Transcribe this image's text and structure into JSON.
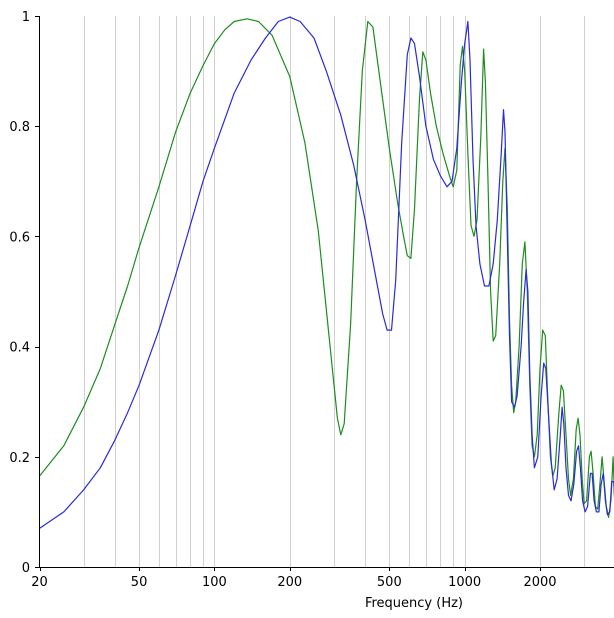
{
  "chart_data": {
    "type": "line",
    "xlabel": "Frequency (Hz)",
    "ylabel": "",
    "x_scale": "log",
    "xlim": [
      20,
      4000
    ],
    "ylim": [
      0,
      1
    ],
    "x_tick_labels": [
      "20",
      "50",
      "100",
      "200",
      "500",
      "1000",
      "2000"
    ],
    "x_tick_values": [
      20,
      50,
      100,
      200,
      500,
      1000,
      2000
    ],
    "y_tick_labels": [
      "0",
      "0.2",
      "0.4",
      "0.6",
      "0.8",
      "1"
    ],
    "y_tick_values": [
      0,
      0.2,
      0.4,
      0.6,
      0.8,
      1
    ],
    "x_grid_minor": [
      30,
      40,
      60,
      70,
      80,
      90,
      300,
      400,
      600,
      700,
      800,
      900,
      3000
    ],
    "grid": "vertical",
    "colors": {
      "grid": "#d0d0d0",
      "axis": "#000000"
    },
    "series": [
      {
        "color": "#1e8c1e",
        "points": [
          [
            20,
            0.165
          ],
          [
            25,
            0.22
          ],
          [
            30,
            0.29
          ],
          [
            35,
            0.36
          ],
          [
            40,
            0.44
          ],
          [
            45,
            0.51
          ],
          [
            50,
            0.58
          ],
          [
            60,
            0.69
          ],
          [
            70,
            0.79
          ],
          [
            80,
            0.86
          ],
          [
            90,
            0.91
          ],
          [
            100,
            0.95
          ],
          [
            110,
            0.975
          ],
          [
            120,
            0.99
          ],
          [
            135,
            0.995
          ],
          [
            150,
            0.99
          ],
          [
            170,
            0.965
          ],
          [
            200,
            0.89
          ],
          [
            230,
            0.77
          ],
          [
            260,
            0.61
          ],
          [
            290,
            0.4
          ],
          [
            310,
            0.27
          ],
          [
            320,
            0.24
          ],
          [
            330,
            0.26
          ],
          [
            350,
            0.44
          ],
          [
            370,
            0.7
          ],
          [
            390,
            0.9
          ],
          [
            410,
            0.99
          ],
          [
            430,
            0.98
          ],
          [
            460,
            0.88
          ],
          [
            500,
            0.76
          ],
          [
            540,
            0.66
          ],
          [
            570,
            0.6
          ],
          [
            590,
            0.565
          ],
          [
            610,
            0.56
          ],
          [
            630,
            0.65
          ],
          [
            660,
            0.85
          ],
          [
            680,
            0.935
          ],
          [
            700,
            0.92
          ],
          [
            730,
            0.86
          ],
          [
            770,
            0.8
          ],
          [
            820,
            0.75
          ],
          [
            870,
            0.71
          ],
          [
            900,
            0.69
          ],
          [
            930,
            0.72
          ],
          [
            960,
            0.91
          ],
          [
            980,
            0.945
          ],
          [
            1000,
            0.9
          ],
          [
            1030,
            0.75
          ],
          [
            1060,
            0.62
          ],
          [
            1090,
            0.6
          ],
          [
            1120,
            0.63
          ],
          [
            1160,
            0.78
          ],
          [
            1190,
            0.94
          ],
          [
            1210,
            0.88
          ],
          [
            1240,
            0.7
          ],
          [
            1270,
            0.5
          ],
          [
            1300,
            0.41
          ],
          [
            1330,
            0.42
          ],
          [
            1380,
            0.55
          ],
          [
            1420,
            0.7
          ],
          [
            1450,
            0.76
          ],
          [
            1480,
            0.65
          ],
          [
            1510,
            0.45
          ],
          [
            1540,
            0.33
          ],
          [
            1570,
            0.28
          ],
          [
            1600,
            0.3
          ],
          [
            1650,
            0.4
          ],
          [
            1700,
            0.55
          ],
          [
            1740,
            0.59
          ],
          [
            1780,
            0.5
          ],
          [
            1820,
            0.33
          ],
          [
            1860,
            0.22
          ],
          [
            1900,
            0.2
          ],
          [
            1950,
            0.24
          ],
          [
            2000,
            0.36
          ],
          [
            2050,
            0.43
          ],
          [
            2100,
            0.42
          ],
          [
            2150,
            0.3
          ],
          [
            2200,
            0.2
          ],
          [
            2250,
            0.165
          ],
          [
            2300,
            0.18
          ],
          [
            2380,
            0.28
          ],
          [
            2430,
            0.33
          ],
          [
            2480,
            0.32
          ],
          [
            2540,
            0.24
          ],
          [
            2600,
            0.16
          ],
          [
            2650,
            0.13
          ],
          [
            2720,
            0.16
          ],
          [
            2790,
            0.25
          ],
          [
            2840,
            0.27
          ],
          [
            2890,
            0.24
          ],
          [
            2950,
            0.16
          ],
          [
            3000,
            0.115
          ],
          [
            3070,
            0.12
          ],
          [
            3150,
            0.2
          ],
          [
            3200,
            0.21
          ],
          [
            3260,
            0.17
          ],
          [
            3330,
            0.11
          ],
          [
            3400,
            0.105
          ],
          [
            3470,
            0.15
          ],
          [
            3540,
            0.2
          ],
          [
            3600,
            0.16
          ],
          [
            3680,
            0.11
          ],
          [
            3760,
            0.09
          ],
          [
            3840,
            0.12
          ],
          [
            3920,
            0.2
          ],
          [
            4000,
            0.09
          ]
        ]
      },
      {
        "color": "#2a2ad8",
        "points": [
          [
            20,
            0.07
          ],
          [
            25,
            0.1
          ],
          [
            30,
            0.14
          ],
          [
            35,
            0.18
          ],
          [
            40,
            0.23
          ],
          [
            45,
            0.28
          ],
          [
            50,
            0.33
          ],
          [
            60,
            0.43
          ],
          [
            70,
            0.53
          ],
          [
            80,
            0.62
          ],
          [
            90,
            0.7
          ],
          [
            100,
            0.76
          ],
          [
            120,
            0.86
          ],
          [
            140,
            0.92
          ],
          [
            160,
            0.96
          ],
          [
            180,
            0.99
          ],
          [
            200,
            0.998
          ],
          [
            220,
            0.99
          ],
          [
            250,
            0.96
          ],
          [
            280,
            0.9
          ],
          [
            320,
            0.82
          ],
          [
            360,
            0.73
          ],
          [
            400,
            0.63
          ],
          [
            440,
            0.53
          ],
          [
            470,
            0.46
          ],
          [
            490,
            0.43
          ],
          [
            510,
            0.43
          ],
          [
            530,
            0.52
          ],
          [
            560,
            0.77
          ],
          [
            590,
            0.93
          ],
          [
            610,
            0.96
          ],
          [
            630,
            0.95
          ],
          [
            660,
            0.89
          ],
          [
            700,
            0.8
          ],
          [
            750,
            0.74
          ],
          [
            800,
            0.71
          ],
          [
            850,
            0.69
          ],
          [
            890,
            0.7
          ],
          [
            930,
            0.76
          ],
          [
            970,
            0.88
          ],
          [
            1000,
            0.95
          ],
          [
            1030,
            0.99
          ],
          [
            1050,
            0.92
          ],
          [
            1080,
            0.74
          ],
          [
            1110,
            0.62
          ],
          [
            1150,
            0.55
          ],
          [
            1200,
            0.51
          ],
          [
            1250,
            0.51
          ],
          [
            1300,
            0.55
          ],
          [
            1350,
            0.63
          ],
          [
            1400,
            0.75
          ],
          [
            1430,
            0.83
          ],
          [
            1450,
            0.79
          ],
          [
            1480,
            0.6
          ],
          [
            1510,
            0.42
          ],
          [
            1540,
            0.3
          ],
          [
            1580,
            0.29
          ],
          [
            1620,
            0.31
          ],
          [
            1680,
            0.4
          ],
          [
            1720,
            0.48
          ],
          [
            1760,
            0.54
          ],
          [
            1790,
            0.5
          ],
          [
            1820,
            0.35
          ],
          [
            1860,
            0.24
          ],
          [
            1900,
            0.18
          ],
          [
            1960,
            0.2
          ],
          [
            2020,
            0.31
          ],
          [
            2070,
            0.37
          ],
          [
            2110,
            0.36
          ],
          [
            2160,
            0.28
          ],
          [
            2220,
            0.19
          ],
          [
            2280,
            0.14
          ],
          [
            2340,
            0.16
          ],
          [
            2410,
            0.24
          ],
          [
            2450,
            0.29
          ],
          [
            2490,
            0.26
          ],
          [
            2540,
            0.18
          ],
          [
            2600,
            0.13
          ],
          [
            2660,
            0.12
          ],
          [
            2730,
            0.15
          ],
          [
            2800,
            0.21
          ],
          [
            2850,
            0.22
          ],
          [
            2900,
            0.18
          ],
          [
            2960,
            0.12
          ],
          [
            3030,
            0.1
          ],
          [
            3100,
            0.11
          ],
          [
            3180,
            0.17
          ],
          [
            3230,
            0.17
          ],
          [
            3290,
            0.12
          ],
          [
            3360,
            0.1
          ],
          [
            3440,
            0.1
          ],
          [
            3510,
            0.15
          ],
          [
            3580,
            0.17
          ],
          [
            3650,
            0.12
          ],
          [
            3720,
            0.095
          ],
          [
            3800,
            0.1
          ],
          [
            3870,
            0.155
          ],
          [
            3940,
            0.155
          ],
          [
            4000,
            0.1
          ]
        ]
      }
    ]
  }
}
